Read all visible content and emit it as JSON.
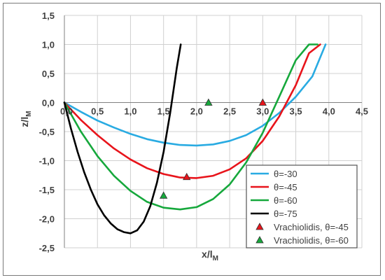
{
  "chart_data": {
    "type": "line",
    "xlabel": "x/l",
    "xlabel_sub": "M",
    "ylabel": "z/l",
    "ylabel_sub": "M",
    "xlim": [
      0,
      4.5
    ],
    "ylim": [
      -2.5,
      1.5
    ],
    "xticks": [
      0,
      0.5,
      1,
      1.5,
      2,
      2.5,
      3,
      3.5,
      4,
      4.5
    ],
    "xtick_labels": [
      "0,0",
      "0,5",
      "1,0",
      "1,5",
      "2,0",
      "2,5",
      "3,0",
      "3,5",
      "4,0",
      "4,5"
    ],
    "yticks": [
      1.5,
      1.0,
      0.5,
      0.0,
      -0.5,
      -1.0,
      -1.5,
      -2.0,
      -2.5
    ],
    "ytick_labels": [
      "1,5",
      "1,0",
      "0,5",
      "0,0",
      "-0,5",
      "-1,0",
      "-1,5",
      "-2,0",
      "-2,5"
    ],
    "grid": true,
    "legend_position": "bottom-right",
    "series": [
      {
        "name": "θ=-30",
        "color": "#29abe2",
        "kind": "line",
        "x": [
          0,
          0.25,
          0.5,
          0.75,
          1.0,
          1.25,
          1.5,
          1.75,
          2.0,
          2.25,
          2.5,
          2.75,
          3.0,
          3.25,
          3.5,
          3.75,
          3.95
        ],
        "y": [
          0,
          -0.16,
          -0.31,
          -0.43,
          -0.54,
          -0.63,
          -0.69,
          -0.73,
          -0.74,
          -0.72,
          -0.66,
          -0.56,
          -0.4,
          -0.18,
          0.1,
          0.45,
          1.0
        ]
      },
      {
        "name": "θ=-45",
        "color": "#e8141b",
        "kind": "line",
        "x": [
          0,
          0.25,
          0.5,
          0.75,
          1.0,
          1.25,
          1.5,
          1.75,
          2.0,
          2.25,
          2.5,
          2.75,
          3.0,
          3.25,
          3.5,
          3.7,
          3.87
        ],
        "y": [
          0,
          -0.3,
          -0.56,
          -0.79,
          -0.98,
          -1.13,
          -1.23,
          -1.29,
          -1.3,
          -1.26,
          -1.15,
          -0.96,
          -0.66,
          -0.24,
          0.3,
          0.85,
          1.0
        ]
      },
      {
        "name": "θ=-60",
        "color": "#16a83c",
        "kind": "line",
        "x": [
          0,
          0.25,
          0.5,
          0.75,
          1.0,
          1.25,
          1.5,
          1.75,
          2.0,
          2.25,
          2.5,
          2.75,
          3.0,
          3.25,
          3.5,
          3.7,
          3.83
        ],
        "y": [
          0,
          -0.5,
          -0.92,
          -1.26,
          -1.52,
          -1.71,
          -1.81,
          -1.84,
          -1.8,
          -1.66,
          -1.41,
          -1.03,
          -0.52,
          0.1,
          0.73,
          1.0,
          1.0
        ]
      },
      {
        "name": "θ=-75",
        "color": "#000000",
        "kind": "line",
        "x": [
          0,
          0.1,
          0.2,
          0.3,
          0.4,
          0.5,
          0.6,
          0.7,
          0.8,
          0.9,
          1.0,
          1.1,
          1.2,
          1.3,
          1.4,
          1.5,
          1.6,
          1.7,
          1.76
        ],
        "y": [
          0,
          -0.45,
          -0.85,
          -1.2,
          -1.5,
          -1.75,
          -1.94,
          -2.08,
          -2.18,
          -2.23,
          -2.25,
          -2.2,
          -2.05,
          -1.78,
          -1.38,
          -0.85,
          -0.18,
          0.6,
          1.0
        ]
      },
      {
        "name": "Vrachiolidis, θ=-45",
        "color": "#e8141b",
        "kind": "marker",
        "x": [
          1.85,
          3.0
        ],
        "y": [
          -1.28,
          0.0
        ]
      },
      {
        "name": "Vrachiolidis, θ=-60",
        "color": "#16a83c",
        "kind": "marker",
        "x": [
          1.5,
          2.18
        ],
        "y": [
          -1.6,
          0.0
        ]
      }
    ]
  }
}
